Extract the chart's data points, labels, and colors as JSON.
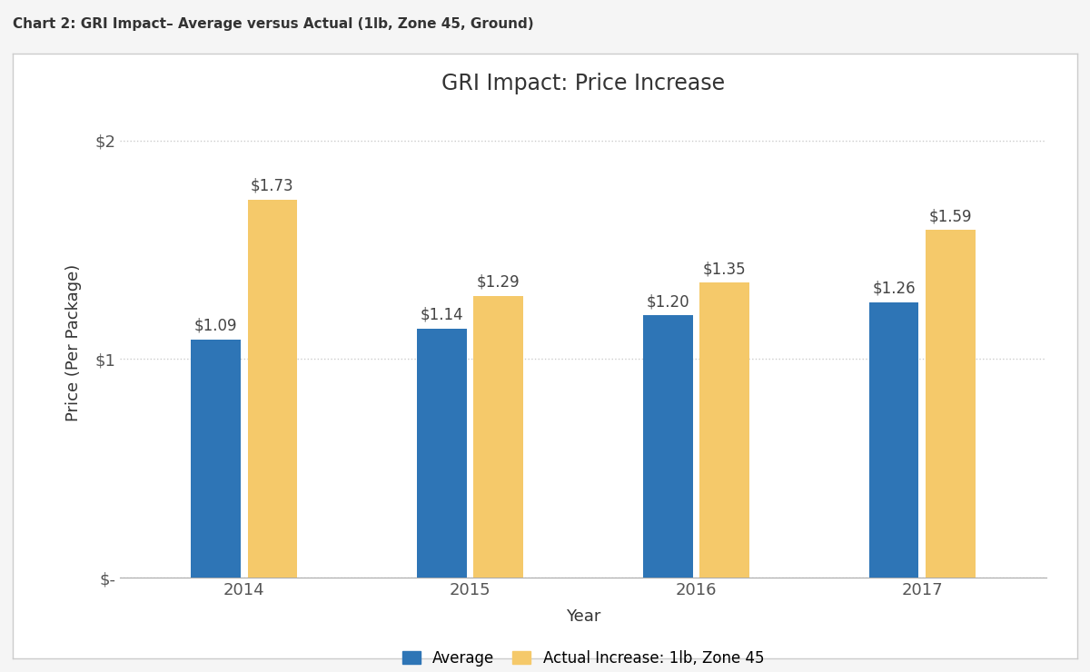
{
  "title": "GRI Impact: Price Increase",
  "super_title": "Chart 2: GRI Impact– Average versus Actual (1lb, Zone 45, Ground)",
  "xlabel": "Year",
  "ylabel": "Price (Per Package)",
  "years": [
    "2014",
    "2015",
    "2016",
    "2017"
  ],
  "average_values": [
    1.09,
    1.14,
    1.2,
    1.26
  ],
  "actual_values": [
    1.73,
    1.29,
    1.35,
    1.59
  ],
  "average_color": "#2E75B6",
  "actual_color": "#F5C96A",
  "yticks": [
    0,
    1,
    2
  ],
  "ytick_labels": [
    "$-",
    "$1",
    "$2"
  ],
  "ylim": [
    0,
    2.15
  ],
  "legend_labels": [
    "Average",
    "Actual Increase: 1lb, Zone 45"
  ],
  "background_color": "#F5F5F5",
  "chart_area_color": "#FFFFFF",
  "panel_border_color": "#CCCCCC",
  "grid_color": "#CCCCCC",
  "title_fontsize": 17,
  "label_fontsize": 13,
  "tick_fontsize": 13,
  "annotation_fontsize": 12,
  "bar_width": 0.22
}
